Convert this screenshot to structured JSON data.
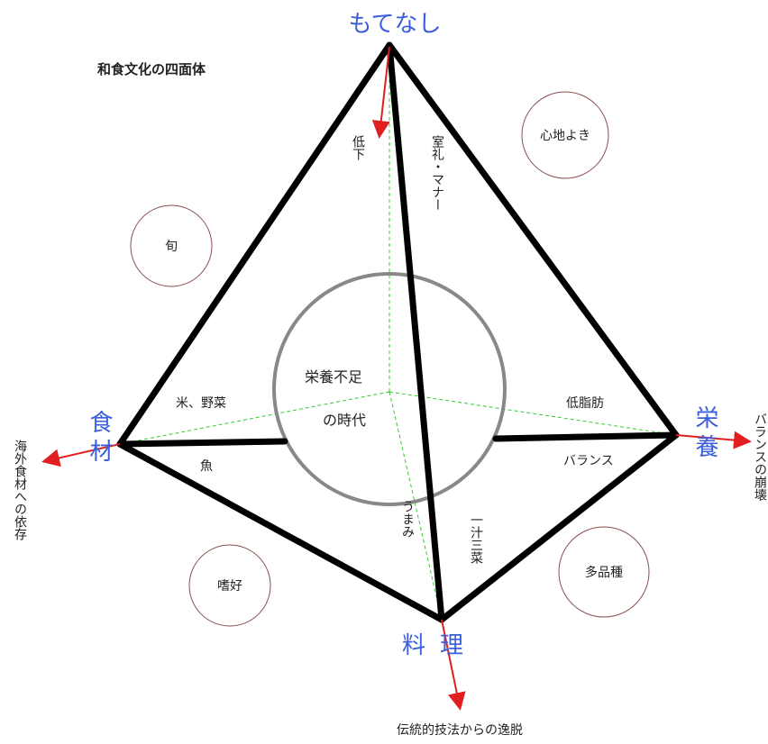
{
  "title": "和食文化の四面体",
  "vertices": {
    "top": "もてなし",
    "left": "食材",
    "right": "栄養",
    "bottom": "料理"
  },
  "edges": {
    "top_down": "低下",
    "top_bottom": "室礼・マナー",
    "left_a": "米、野菜",
    "left_b": "魚",
    "right_a": "低脂肪",
    "right_b": "バランス",
    "bottom_left": "うまみ",
    "bottom_right": "一汁三菜"
  },
  "circles": {
    "top_right": "心地よき",
    "left": "旬",
    "bottom_left": "嗜好",
    "bottom_right": "多品種"
  },
  "center": {
    "line1": "栄養不足",
    "line2": "の時代"
  },
  "arrows": {
    "left": "海外食材への依存",
    "right": "バランスの崩壊",
    "bottom": "伝統的技法からの逸脱"
  }
}
